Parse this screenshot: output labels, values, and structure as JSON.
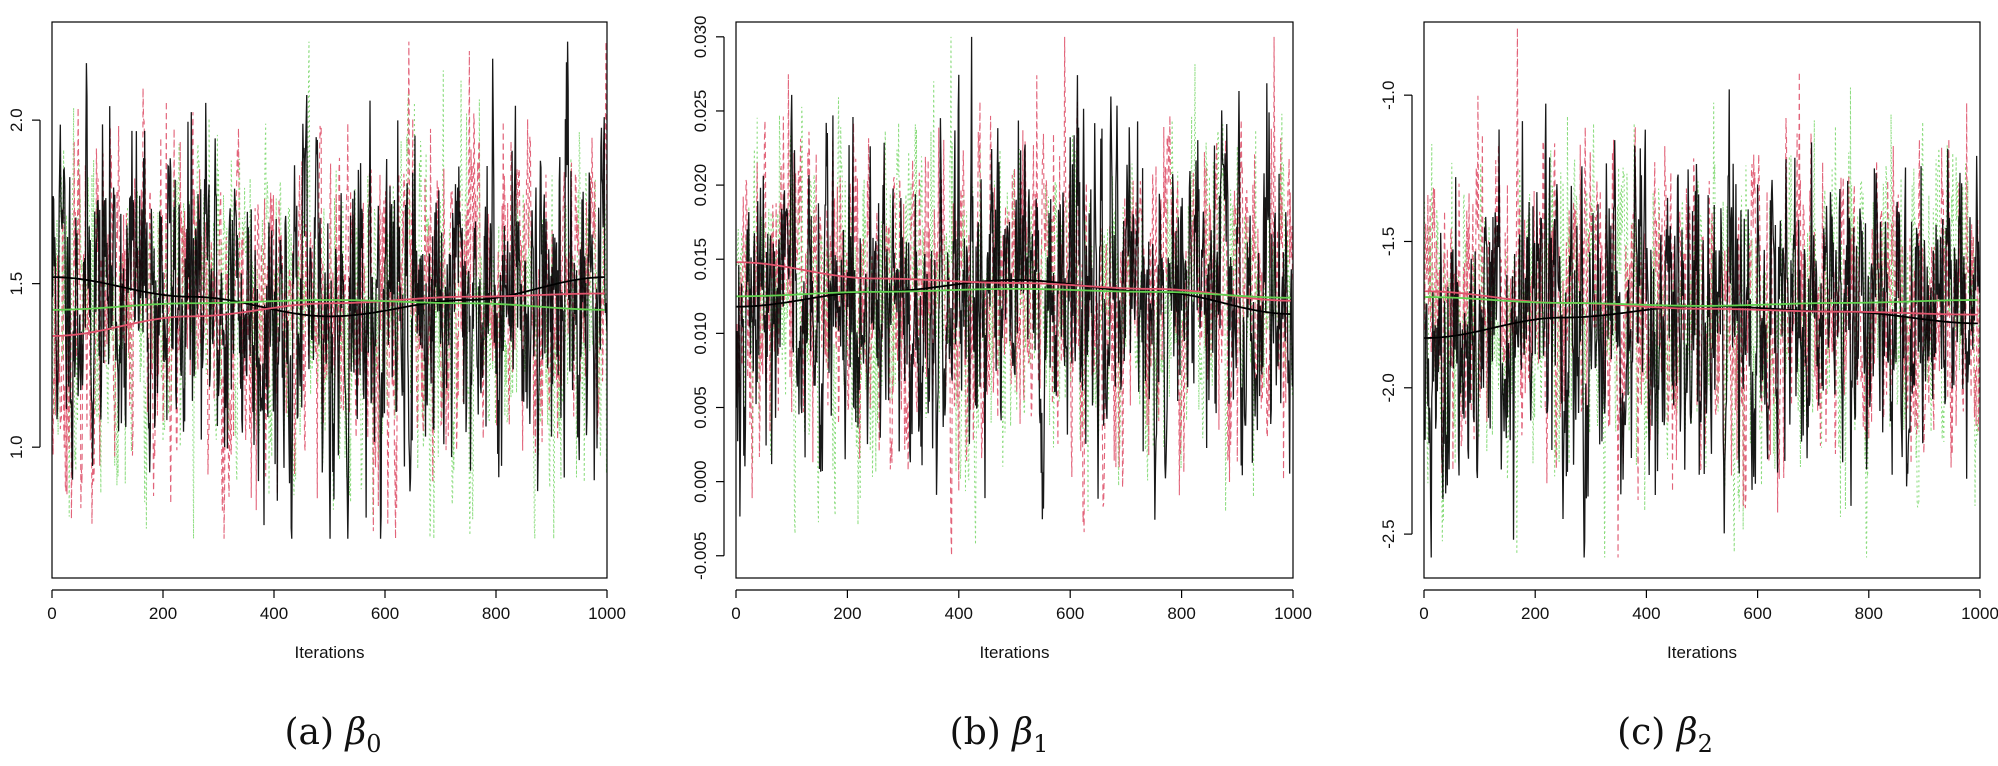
{
  "chart_data": [
    {
      "type": "line",
      "caption_prefix": "(a)",
      "caption_symbol": "β",
      "caption_sub": "0",
      "xlabel": "Iterations",
      "ylabel": "",
      "xlim": [
        0,
        1000
      ],
      "ylim": [
        0.6,
        2.3
      ],
      "xticks": [
        0,
        200,
        400,
        600,
        800,
        1000
      ],
      "yticks": [
        1.0,
        1.5,
        2.0
      ],
      "ytick_labels": [
        "1.0",
        "1.5",
        "2.0"
      ],
      "grid": false,
      "trace": {
        "mean": 1.43,
        "sd": 0.26,
        "min": 0.72,
        "max": 2.24
      },
      "series": [
        {
          "color": "#000000",
          "style": "solid",
          "smooth": [
            [
              0,
              1.52
            ],
            [
              250,
              1.46
            ],
            [
              500,
              1.4
            ],
            [
              750,
              1.45
            ],
            [
              1000,
              1.52
            ]
          ]
        },
        {
          "color": "#DF536B",
          "style": "dashed",
          "smooth": [
            [
              0,
              1.34
            ],
            [
              250,
              1.4
            ],
            [
              500,
              1.44
            ],
            [
              750,
              1.46
            ],
            [
              1000,
              1.47
            ]
          ]
        },
        {
          "color": "#61D04F",
          "style": "dotted",
          "smooth": [
            [
              0,
              1.42
            ],
            [
              250,
              1.44
            ],
            [
              500,
              1.45
            ],
            [
              750,
              1.44
            ],
            [
              1000,
              1.42
            ]
          ]
        }
      ]
    },
    {
      "type": "line",
      "caption_prefix": "(b)",
      "caption_symbol": "β",
      "caption_sub": "1",
      "xlabel": "Iterations",
      "ylabel": "",
      "xlim": [
        0,
        1000
      ],
      "ylim": [
        -0.0065,
        0.031
      ],
      "xticks": [
        0,
        200,
        400,
        600,
        800,
        1000
      ],
      "yticks": [
        -0.005,
        0.0,
        0.005,
        0.01,
        0.015,
        0.02,
        0.025,
        0.03
      ],
      "ytick_labels": [
        "-0.005",
        "0.000",
        "0.005",
        "0.010",
        "0.015",
        "0.020",
        "0.025",
        "0.030"
      ],
      "grid": false,
      "trace": {
        "mean": 0.013,
        "sd": 0.0055,
        "min": -0.005,
        "max": 0.03
      },
      "series": [
        {
          "color": "#000000",
          "style": "solid",
          "smooth": [
            [
              0,
              0.0118
            ],
            [
              250,
              0.0128
            ],
            [
              500,
              0.0136
            ],
            [
              750,
              0.0128
            ],
            [
              1000,
              0.0113
            ]
          ]
        },
        {
          "color": "#DF536B",
          "style": "dashed",
          "smooth": [
            [
              0,
              0.0148
            ],
            [
              250,
              0.0137
            ],
            [
              500,
              0.0134
            ],
            [
              750,
              0.013
            ],
            [
              1000,
              0.0122
            ]
          ]
        },
        {
          "color": "#61D04F",
          "style": "dotted",
          "smooth": [
            [
              0,
              0.0125
            ],
            [
              250,
              0.0128
            ],
            [
              500,
              0.013
            ],
            [
              750,
              0.0128
            ],
            [
              1000,
              0.0124
            ]
          ]
        }
      ]
    },
    {
      "type": "line",
      "caption_prefix": "(c)",
      "caption_symbol": "β",
      "caption_sub": "2",
      "xlabel": "Iterations",
      "ylabel": "",
      "xlim": [
        0,
        1000
      ],
      "ylim": [
        -2.65,
        -0.75
      ],
      "xticks": [
        0,
        200,
        400,
        600,
        800,
        1000
      ],
      "yticks": [
        -2.5,
        -2.0,
        -1.5,
        -1.0
      ],
      "ytick_labels": [
        "-2.5",
        "-2.0",
        "-1.5",
        "-1.0"
      ],
      "grid": false,
      "trace": {
        "mean": -1.73,
        "sd": 0.27,
        "min": -2.58,
        "max": -0.77
      },
      "series": [
        {
          "color": "#000000",
          "style": "solid",
          "smooth": [
            [
              0,
              -1.83
            ],
            [
              250,
              -1.76
            ],
            [
              500,
              -1.72
            ],
            [
              750,
              -1.74
            ],
            [
              1000,
              -1.78
            ]
          ]
        },
        {
          "color": "#DF536B",
          "style": "dashed",
          "smooth": [
            [
              0,
              -1.67
            ],
            [
              250,
              -1.71
            ],
            [
              500,
              -1.73
            ],
            [
              750,
              -1.74
            ],
            [
              1000,
              -1.75
            ]
          ]
        },
        {
          "color": "#61D04F",
          "style": "dotted",
          "smooth": [
            [
              0,
              -1.69
            ],
            [
              250,
              -1.71
            ],
            [
              500,
              -1.72
            ],
            [
              750,
              -1.71
            ],
            [
              1000,
              -1.7
            ]
          ]
        }
      ]
    }
  ]
}
